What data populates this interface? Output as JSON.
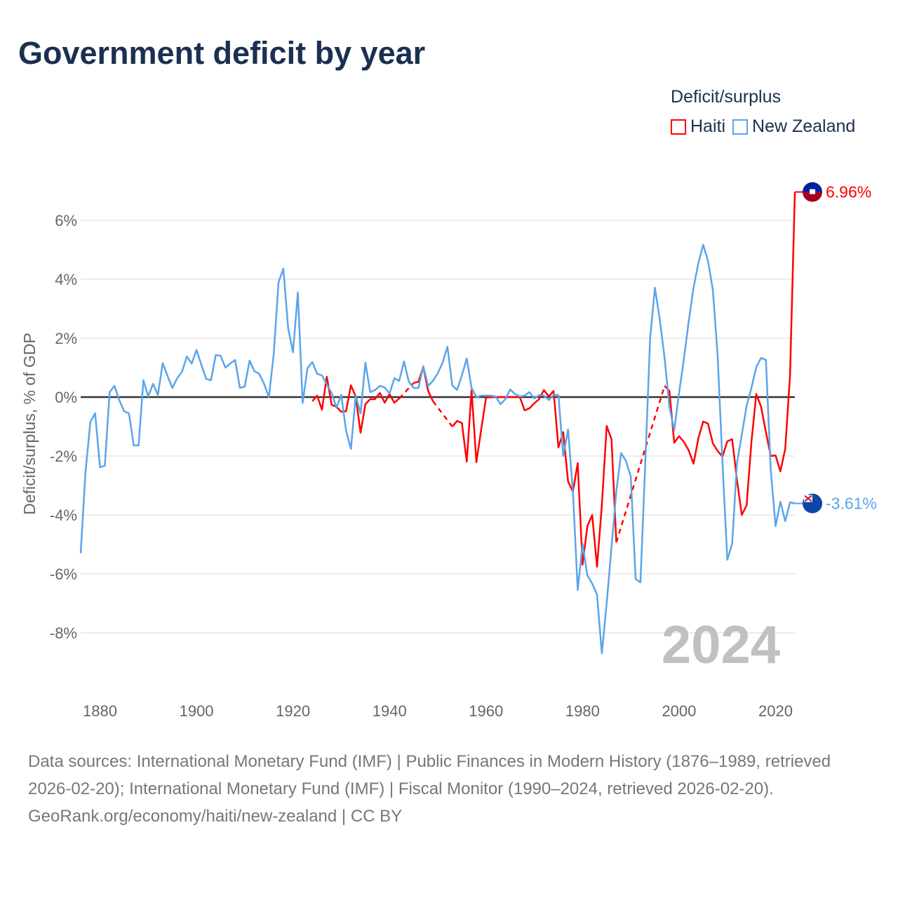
{
  "title": "Government deficit by year",
  "legend": {
    "title": "Deficit/surplus"
  },
  "end_labels": {
    "haiti": "6.96%",
    "nz": "-3.61%"
  },
  "year_watermark": "2024",
  "footer": {
    "sources": "Data sources: International Monetary Fund (IMF) | Public Finances in Modern History (1876–1989, retrieved 2026-02-20); International Monetary Fund (IMF) | Fiscal Monitor (1990–2024, retrieved 2026-02-20).",
    "credit": "GeoRank.org/economy/haiti/new-zealand | CC BY"
  },
  "chart_data": {
    "type": "line",
    "title": "Government deficit by year",
    "xlabel": "",
    "ylabel": "Deficit/surplus, % of GDP",
    "xlim": [
      1876,
      2024
    ],
    "ylim": [
      -10,
      7.5
    ],
    "x_ticks": [
      1880,
      1900,
      1920,
      1940,
      1960,
      1980,
      2000,
      2020
    ],
    "x_tick_labels": [
      "1880",
      "1900",
      "1920",
      "1940",
      "1960",
      "1980",
      "2000",
      "2020"
    ],
    "y_ticks": [
      6,
      4,
      2,
      0,
      -2,
      -4,
      -6,
      -8
    ],
    "y_tick_labels": [
      "6%",
      "4%",
      "2%",
      "0%",
      "-2%",
      "-4%",
      "-6%",
      "-8%"
    ],
    "grid": true,
    "legend_position": "top-right",
    "series": [
      {
        "name": "Haiti",
        "color": "#ff0000",
        "start": 1924,
        "values": [
          -0.14,
          0.05,
          -0.43,
          0.69,
          -0.26,
          -0.33,
          -0.5,
          -0.48,
          0.4,
          0.02,
          -1.21,
          -0.24,
          -0.07,
          -0.07,
          0.14,
          -0.19,
          0.1,
          -0.19,
          -0.05,
          null,
          null,
          0.48,
          0.52,
          1.02,
          0.21,
          -0.14,
          null,
          null,
          null,
          -1.0,
          -0.81,
          -0.88,
          -2.19,
          0.24,
          -2.21,
          -1.1,
          -0.02,
          0.0,
          0.0,
          0.0,
          0.0,
          0.0,
          0.0,
          0.0,
          -0.45,
          -0.38,
          -0.21,
          -0.07,
          0.24,
          0.02,
          0.21,
          -1.71,
          -1.19,
          -2.86,
          -3.21,
          -2.24,
          -5.69,
          -4.38,
          -4.0,
          -5.76,
          -3.67,
          -0.98,
          -1.43,
          -4.93,
          null,
          null,
          null,
          null,
          null,
          null,
          null,
          null,
          null,
          0.38,
          0.21,
          -1.55,
          -1.33,
          -1.52,
          -1.81,
          -2.26,
          -1.4,
          -0.83,
          -0.9,
          -1.57,
          -1.83,
          -2.02,
          -1.5,
          -1.43,
          -2.81,
          -4.0,
          -3.67,
          -1.52,
          0.1,
          -0.33,
          -1.19,
          -2.0,
          -1.98,
          -2.52,
          -1.76,
          0.74,
          6.96
        ]
      },
      {
        "name": "New Zealand",
        "color": "#5ba4ea",
        "start": 1876,
        "values": [
          -5.3,
          -2.55,
          -0.85,
          -0.55,
          -2.38,
          -2.33,
          0.17,
          0.38,
          -0.1,
          -0.48,
          -0.55,
          -1.64,
          -1.64,
          0.57,
          0.02,
          0.45,
          0.07,
          1.15,
          0.72,
          0.31,
          0.64,
          0.86,
          1.38,
          1.14,
          1.6,
          1.1,
          0.62,
          0.57,
          1.43,
          1.4,
          1.0,
          1.14,
          1.26,
          0.31,
          0.36,
          1.24,
          0.88,
          0.79,
          0.45,
          0.0,
          1.45,
          3.9,
          4.36,
          2.33,
          1.52,
          3.55,
          -0.2,
          0.98,
          1.19,
          0.79,
          0.74,
          0.43,
          0.14,
          -0.36,
          0.07,
          -1.14,
          -1.76,
          0.05,
          -0.55,
          1.17,
          0.17,
          0.24,
          0.38,
          0.33,
          0.12,
          0.64,
          0.55,
          1.21,
          0.52,
          0.31,
          0.31,
          1.05,
          0.38,
          0.55,
          0.81,
          1.17,
          1.71,
          0.4,
          0.24,
          0.74,
          1.31,
          0.31,
          0.0,
          0.05,
          0.05,
          0.05,
          0.02,
          -0.24,
          -0.07,
          0.26,
          0.1,
          0.02,
          0.05,
          0.17,
          -0.05,
          0.07,
          0.05,
          -0.1,
          0.07,
          0.07,
          -2.0,
          -1.1,
          -3.2,
          -6.55,
          -4.98,
          -6.05,
          -6.33,
          -6.7,
          -8.7,
          -7.0,
          -5.1,
          -3.2,
          -1.9,
          -2.17,
          -2.7,
          -6.17,
          -6.29,
          -2.24,
          1.98,
          3.71,
          2.64,
          1.33,
          -0.33,
          -1.12,
          0.14,
          1.29,
          2.57,
          3.71,
          4.55,
          5.17,
          4.62,
          3.64,
          1.4,
          -2.24,
          -5.52,
          -4.98,
          -2.24,
          -1.29,
          -0.29,
          0.31,
          1.02,
          1.33,
          1.26,
          -2.48,
          -4.38,
          -3.55,
          -4.21,
          -3.57,
          -3.61
        ]
      }
    ]
  }
}
